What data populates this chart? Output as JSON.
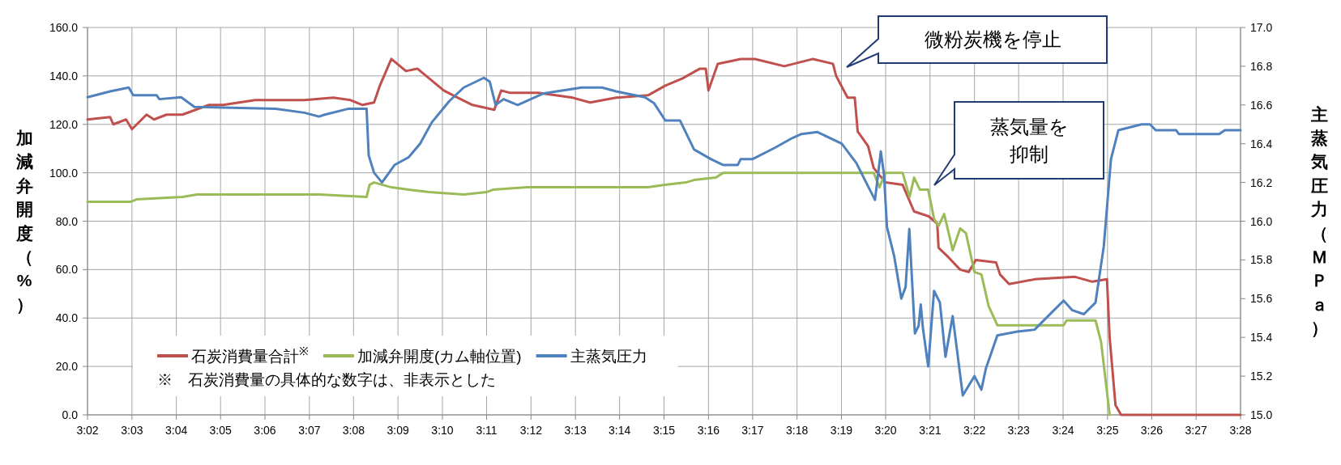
{
  "chart_data": {
    "type": "line",
    "ylabel": "加減弁開度（%）",
    "y2label": "主蒸気圧力（ＭＰａ）",
    "xlim": [
      3.0333,
      3.4667
    ],
    "xticks": [
      {
        "value": 3.0333,
        "label": "3:02"
      },
      {
        "value": 3.05,
        "label": "3:03"
      },
      {
        "value": 3.0667,
        "label": "3:04"
      },
      {
        "value": 3.0833,
        "label": "3:05"
      },
      {
        "value": 3.1,
        "label": "3:06"
      },
      {
        "value": 3.1167,
        "label": "3:07"
      },
      {
        "value": 3.1333,
        "label": "3:08"
      },
      {
        "value": 3.15,
        "label": "3:09"
      },
      {
        "value": 3.1667,
        "label": "3:10"
      },
      {
        "value": 3.1833,
        "label": "3:11"
      },
      {
        "value": 3.2,
        "label": "3:12"
      },
      {
        "value": 3.2167,
        "label": "3:13"
      },
      {
        "value": 3.2333,
        "label": "3:14"
      },
      {
        "value": 3.25,
        "label": "3:15"
      },
      {
        "value": 3.2667,
        "label": "3:16"
      },
      {
        "value": 3.2833,
        "label": "3:17"
      },
      {
        "value": 3.3,
        "label": "3:18"
      },
      {
        "value": 3.3167,
        "label": "3:19"
      },
      {
        "value": 3.3333,
        "label": "3:20"
      },
      {
        "value": 3.35,
        "label": "3:21"
      },
      {
        "value": 3.3667,
        "label": "3:22"
      },
      {
        "value": 3.3833,
        "label": "3:23"
      },
      {
        "value": 3.4,
        "label": "3:24"
      },
      {
        "value": 3.4167,
        "label": "3:25"
      },
      {
        "value": 3.4333,
        "label": "3:26"
      },
      {
        "value": 3.45,
        "label": "3:27"
      },
      {
        "value": 3.4667,
        "label": "3:28"
      }
    ],
    "ylim": [
      0,
      160
    ],
    "yticks": [
      {
        "value": 0,
        "label": "0.0"
      },
      {
        "value": 20,
        "label": "20.0"
      },
      {
        "value": 40,
        "label": "40.0"
      },
      {
        "value": 60,
        "label": "60.0"
      },
      {
        "value": 80,
        "label": "80.0"
      },
      {
        "value": 100,
        "label": "100.0"
      },
      {
        "value": 120,
        "label": "120.0"
      },
      {
        "value": 140,
        "label": "140.0"
      },
      {
        "value": 160,
        "label": "160.0"
      }
    ],
    "y2lim": [
      15,
      17
    ],
    "y2ticks": [
      {
        "value": 15,
        "label": "15.0"
      },
      15.2,
      15.4,
      15.6,
      15.8,
      {
        "value": 16,
        "label": "16.0"
      },
      16.2,
      16.4,
      16.6,
      16.8,
      {
        "value": 17,
        "label": "17.0"
      }
    ],
    "grid": true,
    "legend": "bottom left",
    "annotations": [
      "微粉炭機を停止",
      "蒸気量を抑制",
      "※　石炭消費量の具体的な数字は、非表示とした"
    ],
    "series": [
      {
        "name": "石炭消費量合計$^{※}$",
        "color": "#c0504d",
        "x": [
          3.0333,
          3.0418,
          3.043,
          3.0478,
          3.05,
          3.0555,
          3.0583,
          3.063,
          3.069,
          3.0788,
          3.0843,
          3.0963,
          3.1062,
          3.1148,
          3.1257,
          3.1322,
          3.1367,
          3.141,
          3.1432,
          3.1475,
          3.153,
          3.1573,
          3.1617,
          3.1672,
          3.1725,
          3.178,
          3.1862,
          3.1888,
          3.1922,
          3.2027,
          3.2157,
          3.2222,
          3.232,
          3.244,
          3.2505,
          3.257,
          3.2635,
          3.2657,
          3.2667,
          3.2702,
          3.2788,
          3.2842,
          3.2952,
          3.306,
          3.3135,
          3.3147,
          3.319,
          3.3217,
          3.3228,
          3.3267,
          3.3288,
          3.3332,
          3.3397,
          3.344,
          3.3495,
          3.3527,
          3.3532,
          3.357,
          3.3613,
          3.3645,
          3.3672,
          3.3748,
          3.3763,
          3.3797,
          3.3893,
          3.4045,
          3.411,
          3.4165,
          3.4175,
          3.4197,
          3.4218,
          3.4667
        ],
        "values": [
          122,
          123,
          120,
          122,
          118,
          124,
          122,
          124,
          124,
          128,
          128,
          130,
          130,
          130,
          131,
          130,
          128,
          129,
          136,
          147,
          142,
          143,
          139,
          134,
          131,
          128,
          126,
          134,
          133,
          133,
          131,
          129,
          131,
          132,
          136,
          139,
          143,
          143,
          134,
          145,
          147,
          147,
          144,
          147,
          145,
          140,
          131,
          131,
          117,
          111,
          102,
          96,
          95,
          84,
          82,
          79,
          69,
          65,
          60,
          59,
          64,
          63,
          58,
          54,
          56,
          57,
          55,
          56,
          32,
          4,
          0,
          0
        ]
      },
      {
        "name": "加減弁開度(カム軸位置)",
        "color": "#9bbb59",
        "x": [
          3.0333,
          3.0495,
          3.0517,
          3.069,
          3.0745,
          3.093,
          3.1203,
          3.1382,
          3.1393,
          3.141,
          3.1475,
          3.154,
          3.1617,
          3.1747,
          3.1833,
          3.1857,
          3.1985,
          3.244,
          3.2505,
          3.2582,
          3.2613,
          3.2695,
          3.2723,
          3.3288,
          3.331,
          3.3332,
          3.3397,
          3.3423,
          3.344,
          3.3462,
          3.3493,
          3.3515,
          3.3532,
          3.3553,
          3.3585,
          3.3613,
          3.3635,
          3.3667,
          3.3693,
          3.372,
          3.3753,
          3.4002,
          3.4013,
          3.4122,
          3.4143,
          3.4175
        ],
        "values": [
          88,
          88,
          89,
          90,
          91,
          91,
          91,
          90,
          95,
          96,
          94,
          93,
          92,
          91,
          92,
          93,
          94,
          94,
          95,
          96,
          97,
          98,
          100,
          100,
          94,
          100,
          100,
          90,
          98,
          93,
          93,
          81,
          78,
          83,
          68,
          77,
          75,
          59,
          58,
          45,
          37,
          37,
          39,
          39,
          30,
          0
        ]
      },
      {
        "name": "主蒸気圧力",
        "color": "#4f81bd",
        "axis": "y2",
        "x": [
          3.0333,
          3.0418,
          3.0488,
          3.0505,
          3.0593,
          3.0603,
          3.0685,
          3.0735,
          3.104,
          3.1148,
          3.1203,
          3.1225,
          3.1312,
          3.1382,
          3.139,
          3.141,
          3.144,
          3.1487,
          3.154,
          3.1583,
          3.1627,
          3.1693,
          3.1747,
          3.1823,
          3.1845,
          3.1867,
          3.1897,
          3.195,
          3.2048,
          3.219,
          3.2267,
          3.232,
          3.2428,
          3.2462,
          3.2505,
          3.256,
          3.2613,
          3.2677,
          3.2723,
          3.2777,
          3.2788,
          3.2832,
          3.2918,
          3.2983,
          3.3017,
          3.3077,
          3.3168,
          3.3223,
          3.3267,
          3.3293,
          3.3315,
          3.3327,
          3.3338,
          3.3365,
          3.3392,
          3.3408,
          3.3422,
          3.3443,
          3.3457,
          3.3465,
          3.3473,
          3.3493,
          3.3515,
          3.3537,
          3.3558,
          3.3585,
          3.3623,
          3.3667,
          3.3693,
          3.371,
          3.3753,
          3.3828,
          3.3893,
          3.3958,
          3.4002,
          3.4035,
          3.4078,
          3.4122,
          3.4153,
          3.418,
          3.4208,
          3.4295,
          3.4327,
          3.4348,
          3.4425,
          3.4435,
          3.4587,
          3.4608,
          3.4667
        ],
        "values": [
          16.64,
          16.67,
          16.69,
          16.65,
          16.65,
          16.63,
          16.64,
          16.59,
          16.58,
          16.56,
          16.54,
          16.55,
          16.58,
          16.58,
          16.34,
          16.25,
          16.2,
          16.29,
          16.33,
          16.4,
          16.51,
          16.62,
          16.69,
          16.74,
          16.72,
          16.6,
          16.63,
          16.6,
          16.66,
          16.69,
          16.69,
          16.67,
          16.64,
          16.61,
          16.52,
          16.52,
          16.37,
          16.32,
          16.29,
          16.29,
          16.32,
          16.32,
          16.38,
          16.43,
          16.45,
          16.46,
          16.4,
          16.3,
          16.18,
          16.11,
          16.36,
          16.24,
          15.97,
          15.82,
          15.6,
          15.66,
          15.96,
          15.42,
          15.46,
          15.57,
          15.45,
          15.25,
          15.64,
          15.58,
          15.3,
          15.51,
          15.1,
          15.2,
          15.13,
          15.24,
          15.41,
          15.43,
          15.44,
          15.53,
          15.59,
          15.54,
          15.52,
          15.58,
          15.87,
          16.32,
          16.47,
          16.5,
          16.5,
          16.47,
          16.47,
          16.45,
          16.45,
          16.47,
          16.47
        ]
      }
    ]
  }
}
